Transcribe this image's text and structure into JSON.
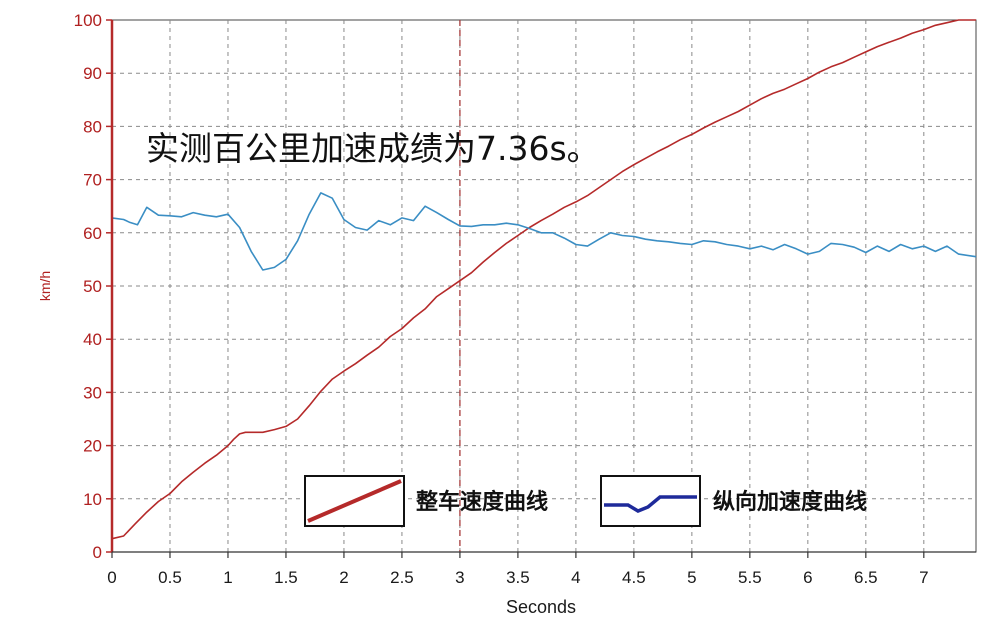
{
  "chart_data": {
    "type": "line",
    "xlabel": "Seconds",
    "ylabel": "km/h",
    "xlim": [
      0,
      7.45
    ],
    "ylim": [
      0,
      100
    ],
    "x_ticks": [
      "0",
      "0.5",
      "1",
      "1.5",
      "2",
      "2.5",
      "3",
      "3.5",
      "4",
      "4.5",
      "5",
      "5.5",
      "6",
      "6.5",
      "7"
    ],
    "y_ticks": [
      "0",
      "10",
      "20",
      "30",
      "40",
      "50",
      "60",
      "70",
      "80",
      "90",
      "100"
    ],
    "grid": true,
    "cursor_x": 3.0,
    "annotation": "实测百公里加速成绩为7.36s。",
    "legend_position": "bottom-center",
    "series": [
      {
        "name": "整车速度曲线",
        "color": "#b52a2a",
        "x": [
          0,
          0.1,
          0.2,
          0.3,
          0.4,
          0.5,
          0.6,
          0.7,
          0.8,
          0.9,
          1.0,
          1.05,
          1.1,
          1.15,
          1.2,
          1.3,
          1.4,
          1.5,
          1.6,
          1.7,
          1.8,
          1.9,
          2.0,
          2.1,
          2.2,
          2.3,
          2.4,
          2.5,
          2.6,
          2.7,
          2.8,
          2.9,
          3.0,
          3.1,
          3.2,
          3.3,
          3.4,
          3.5,
          3.6,
          3.7,
          3.8,
          3.9,
          4.0,
          4.1,
          4.2,
          4.3,
          4.4,
          4.5,
          4.6,
          4.7,
          4.8,
          4.9,
          5.0,
          5.1,
          5.2,
          5.3,
          5.4,
          5.5,
          5.6,
          5.7,
          5.8,
          5.9,
          6.0,
          6.1,
          6.2,
          6.3,
          6.4,
          6.5,
          6.6,
          6.7,
          6.8,
          6.9,
          7.0,
          7.1,
          7.2,
          7.3,
          7.36,
          7.45
        ],
        "values": [
          2.5,
          3.0,
          5.3,
          7.5,
          9.5,
          11.0,
          13.2,
          15.0,
          16.7,
          18.2,
          20.0,
          21.2,
          22.2,
          22.5,
          22.5,
          22.5,
          23.0,
          23.6,
          25.0,
          27.5,
          30.2,
          32.5,
          34.0,
          35.4,
          37.0,
          38.5,
          40.5,
          42.0,
          44.0,
          45.7,
          48.0,
          49.5,
          51.0,
          52.5,
          54.5,
          56.3,
          58.0,
          59.5,
          61.0,
          62.3,
          63.5,
          64.8,
          65.8,
          67.0,
          68.5,
          70.0,
          71.5,
          72.8,
          74.0,
          75.2,
          76.3,
          77.5,
          78.5,
          79.7,
          80.8,
          81.8,
          82.8,
          84.0,
          85.2,
          86.2,
          87.0,
          88.0,
          89.0,
          90.2,
          91.2,
          92.0,
          93.0,
          94.0,
          95.0,
          95.8,
          96.6,
          97.5,
          98.2,
          99.0,
          99.5,
          100.0,
          100.0,
          100.0
        ]
      },
      {
        "name": "纵向加速度曲线",
        "color": "#3a8ec4",
        "x": [
          0,
          0.1,
          0.15,
          0.22,
          0.3,
          0.4,
          0.5,
          0.6,
          0.7,
          0.8,
          0.9,
          1.0,
          1.1,
          1.2,
          1.3,
          1.4,
          1.5,
          1.6,
          1.7,
          1.8,
          1.9,
          2.0,
          2.1,
          2.2,
          2.3,
          2.4,
          2.5,
          2.6,
          2.7,
          2.8,
          2.9,
          3.0,
          3.1,
          3.2,
          3.3,
          3.4,
          3.5,
          3.6,
          3.7,
          3.8,
          3.9,
          4.0,
          4.1,
          4.2,
          4.3,
          4.4,
          4.5,
          4.6,
          4.7,
          4.8,
          4.9,
          5.0,
          5.1,
          5.2,
          5.3,
          5.4,
          5.5,
          5.6,
          5.7,
          5.8,
          5.9,
          6.0,
          6.1,
          6.2,
          6.3,
          6.4,
          6.5,
          6.6,
          6.7,
          6.8,
          6.9,
          7.0,
          7.1,
          7.2,
          7.3,
          7.45
        ],
        "values": [
          62.8,
          62.5,
          62.0,
          61.5,
          64.8,
          63.3,
          63.2,
          63.0,
          63.8,
          63.3,
          63.0,
          63.5,
          61.0,
          56.5,
          53.0,
          53.5,
          55.0,
          58.5,
          63.5,
          67.5,
          66.5,
          62.5,
          61.0,
          60.5,
          62.3,
          61.5,
          62.8,
          62.3,
          65.0,
          63.8,
          62.5,
          61.3,
          61.2,
          61.5,
          61.5,
          61.8,
          61.5,
          60.8,
          60.0,
          60.0,
          59.0,
          57.8,
          57.5,
          58.8,
          60.0,
          59.5,
          59.3,
          58.8,
          58.5,
          58.3,
          58.0,
          57.8,
          58.5,
          58.3,
          57.8,
          57.5,
          57.0,
          57.5,
          56.8,
          57.8,
          57.0,
          56.0,
          56.5,
          58.0,
          57.8,
          57.3,
          56.3,
          57.5,
          56.5,
          57.8,
          57.0,
          57.5,
          56.5,
          57.5,
          56.0,
          55.5
        ]
      }
    ]
  }
}
